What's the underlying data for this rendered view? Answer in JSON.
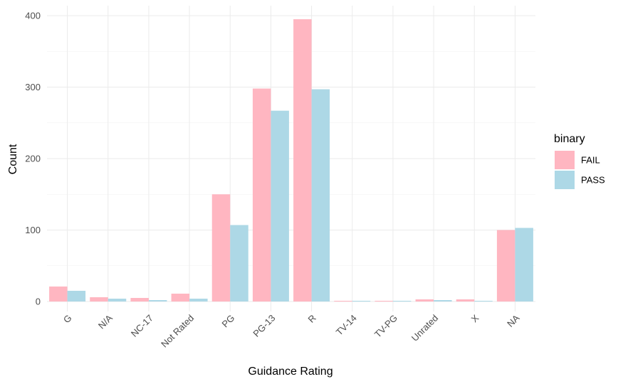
{
  "chart_data": {
    "type": "bar",
    "categories": [
      "G",
      "N/A",
      "NC-17",
      "Not Rated",
      "PG",
      "PG-13",
      "R",
      "TV-14",
      "TV-PG",
      "Unrated",
      "X",
      "NA"
    ],
    "series": [
      {
        "name": "FAIL",
        "color": "#ffb6c1",
        "values": [
          21,
          6,
          5,
          11,
          150,
          298,
          395,
          1,
          1,
          3,
          3,
          100
        ]
      },
      {
        "name": "PASS",
        "color": "#add8e6",
        "values": [
          15,
          4,
          2,
          4,
          107,
          267,
          297,
          1,
          1,
          2,
          1,
          103
        ]
      }
    ],
    "xlabel": "Guidance Rating",
    "ylabel": "Count",
    "ylim": [
      0,
      412
    ],
    "yticks": [
      0,
      100,
      200,
      300,
      400
    ],
    "grid": true,
    "legend": {
      "title": "binary",
      "position": "right"
    }
  }
}
